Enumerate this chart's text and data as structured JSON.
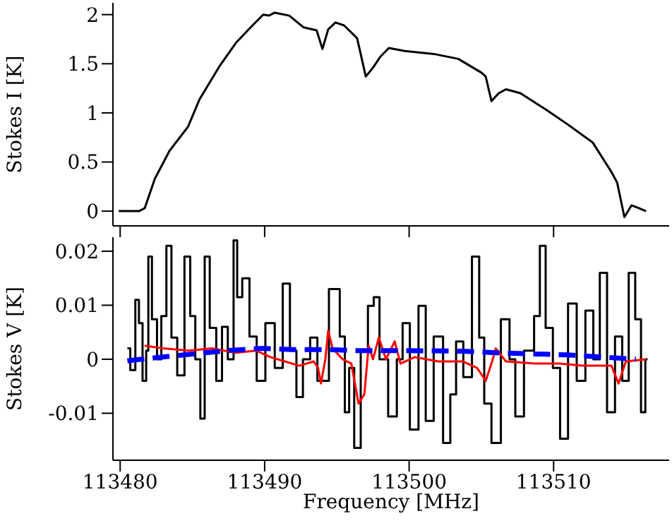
{
  "chart_data": [
    {
      "type": "line",
      "ylabel": "Stokes I [K]",
      "xlim": [
        113479.5,
        113518
      ],
      "xticks": [
        113480,
        113490,
        113500,
        113510
      ],
      "ylim": [
        -0.15,
        2.12
      ],
      "yticks": [
        0,
        0.5,
        1,
        1.5,
        2
      ],
      "tick_labels": "y",
      "grid": false,
      "legend": false,
      "marker": "none",
      "series": [
        {
          "color": "#000000",
          "line_style": "solid",
          "x": [
            113479.9,
            113480.7,
            113481.3,
            113481.7,
            113482.4,
            113483.4,
            113484.7,
            113485.5,
            113486.9,
            113488.0,
            113488.9,
            113489.9,
            113490.3,
            113490.7,
            113491.7,
            113492.7,
            113493.6,
            113494.0,
            113494.4,
            113494.9,
            113495.5,
            113496.4,
            113497.0,
            113497.5,
            113498.0,
            113498.6,
            113499.7,
            113501.7,
            113503.4,
            113505.0,
            113505.3,
            113505.7,
            113506.2,
            113506.7,
            113507.7,
            113509.4,
            113511.0,
            113512.7,
            113514.0,
            113514.4,
            113514.9,
            113515.4,
            113515.9,
            113516.4
          ],
          "values": [
            0,
            0,
            0,
            0.03,
            0.33,
            0.61,
            0.86,
            1.14,
            1.48,
            1.71,
            1.85,
            2.0,
            1.99,
            2.02,
            1.99,
            1.87,
            1.84,
            1.65,
            1.85,
            1.92,
            1.89,
            1.76,
            1.37,
            1.46,
            1.57,
            1.66,
            1.63,
            1.6,
            1.55,
            1.41,
            1.37,
            1.12,
            1.2,
            1.24,
            1.2,
            1.04,
            0.88,
            0.7,
            0.4,
            0.29,
            -0.06,
            0.06,
            0.03,
            0
          ]
        }
      ]
    },
    {
      "type": "line",
      "xlabel": "Frequency [MHz]",
      "ylabel": "Stokes V [K]",
      "xlim": [
        113479.5,
        113518
      ],
      "xticks": [
        113480,
        113490,
        113500,
        113510
      ],
      "ylim": [
        -0.0187,
        0.0226
      ],
      "yticks": [
        -0.01,
        0,
        0.01,
        0.02
      ],
      "grid": false,
      "legend": false,
      "marker": "none",
      "series": [
        {
          "type": "step",
          "color": "#000000",
          "line_style": "solid",
          "x": [
            113480.5,
            113480.9,
            113481.2,
            113481.4,
            113481.7,
            113481.9,
            113482.0,
            113482.4,
            113482.7,
            113483.0,
            113483.4,
            113483.7,
            113484.2,
            113484.7,
            113485.0,
            113485.4,
            113485.7,
            113486.0,
            113486.4,
            113486.9,
            113487.2,
            113487.7,
            113488.0,
            113488.2,
            113488.7,
            113489.2,
            113489.7,
            113490.4,
            113491.0,
            113491.5,
            113492.0,
            113492.4,
            113492.9,
            113493.4,
            113493.9,
            113495.0,
            113495.4,
            113495.7,
            113496.0,
            113496.4,
            113496.9,
            113497.4,
            113497.7,
            113498.2,
            113498.9,
            113499.4,
            113499.7,
            113500.4,
            113500.9,
            113501.4,
            113502.0,
            113502.7,
            113503.0,
            113503.5,
            113504.0,
            113504.7,
            113505.0,
            113505.4,
            113506.0,
            113506.7,
            113507.2,
            113507.5,
            113508.4,
            113508.9,
            113509.2,
            113509.7,
            113510.2,
            113510.7,
            113511.3,
            113511.9,
            113512.5,
            113513.0,
            113513.4,
            113514.0,
            113514.5,
            113515.0,
            113515.4,
            113515.9,
            113516.2,
            113516.5
          ],
          "values": [
            0.002,
            -0.002,
            0.011,
            0.0067,
            -0.004,
            0.0016,
            0.019,
            0.0074,
            0,
            0.008,
            0.021,
            0.004,
            -0.003,
            0.019,
            0.008,
            0,
            -0.011,
            0.019,
            0.0058,
            -0.004,
            0.006,
            0,
            0.022,
            0.0115,
            0.015,
            0.0042,
            -0.004,
            0.0067,
            -0.0016,
            0.014,
            0.0016,
            -0.007,
            0,
            0.004,
            -0.004,
            0.013,
            0.0042,
            -0.0098,
            -0.0016,
            -0.0164,
            0.0016,
            0.0099,
            0.0115,
            0,
            -0.0106,
            0,
            0.0067,
            -0.013,
            0.0099,
            -0.0114,
            0.0042,
            -0.0155,
            -0.0065,
            0.0033,
            -0.0033,
            0.019,
            0.004,
            -0.0082,
            -0.0155,
            0.0074,
            0,
            -0.0106,
            0.0016,
            0.008,
            0.021,
            0.0058,
            -0.0016,
            -0.0147,
            0.0103,
            -0.004,
            0.009,
            0,
            0.016,
            -0.0098,
            0.0042,
            -0.004,
            0.016,
            0.0074,
            -0.0098,
            0
          ]
        },
        {
          "color": "#ff0000",
          "line_style": "solid",
          "x": [
            113481.7,
            113483.0,
            113484.7,
            113486.4,
            113488.0,
            113489.4,
            113490.4,
            113491.4,
            113492.4,
            113493.4,
            113493.7,
            113493.9,
            113494.2,
            113494.4,
            113494.7,
            113495.4,
            113496.0,
            113496.5,
            113496.9,
            113497.2,
            113497.5,
            113497.9,
            113498.4,
            113499.0,
            113499.4,
            113500.4,
            113502.0,
            113503.7,
            113504.7,
            113505.3,
            113505.7,
            113506.0,
            113506.7,
            113508.7,
            113510.4,
            113512.0,
            113514.0,
            113514.5,
            113515.0,
            113516.4
          ],
          "values": [
            0.0025,
            0.002,
            0.0016,
            0.002,
            0.0012,
            0.0016,
            0.0004,
            -0.0004,
            -0.0012,
            -0.0004,
            -0.0016,
            -0.0045,
            0,
            0.0053,
            0.002,
            0,
            -0.0008,
            -0.0082,
            -0.0065,
            0.0025,
            0,
            0.004,
            0,
            0.0033,
            -0.0008,
            0.0004,
            -0.0004,
            -0.0004,
            -0.0016,
            -0.004,
            -0.0008,
            0.002,
            -0.0004,
            -0.0008,
            -0.0008,
            -0.0012,
            -0.0012,
            -0.0045,
            -0.0004,
            0
          ]
        },
        {
          "color": "#0000ff",
          "line_style": "dashed",
          "x": [
            113480.5,
            113481.4,
            113484.4,
            113487.4,
            113489.7,
            113492.0,
            113494.4,
            113496.4,
            113499.4,
            113503.7,
            113506.0,
            113508.4,
            113511.0,
            113513.4,
            113515.7
          ],
          "values": [
            -0.0003,
            0,
            0.0008,
            0.0016,
            0.002,
            0.0018,
            0.0018,
            0.0016,
            0.0016,
            0.0015,
            0.0012,
            0.001,
            0.0008,
            0.0004,
            0
          ]
        }
      ]
    }
  ]
}
